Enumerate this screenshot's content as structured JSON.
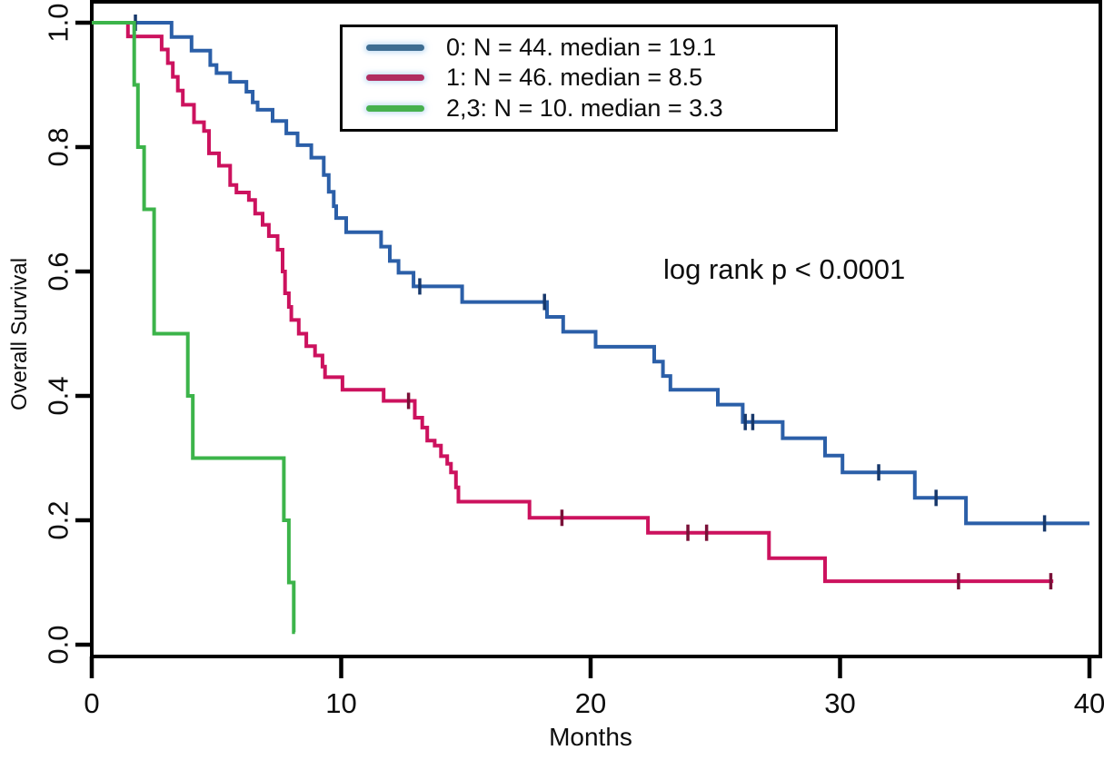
{
  "figure": {
    "background": "#ffffff",
    "frame_color": "#000000",
    "text_color": "#0d0d0d"
  },
  "chart_data": {
    "type": "line",
    "subtype": "kaplan_meier_step_survival",
    "title": "",
    "xlabel": "Months",
    "ylabel": "Overall Survival",
    "annotation": "log rank p < 0.0001",
    "xlim": [
      0,
      40
    ],
    "ylim": [
      0.0,
      1.0
    ],
    "xticks": [
      0,
      10,
      20,
      30,
      40
    ],
    "ytick_labels": [
      "0.0",
      "0.2",
      "0.4",
      "0.6",
      "0.8",
      "1.0"
    ],
    "grid": false,
    "legend_position": "top-inside",
    "series": [
      {
        "name": "group-0",
        "label": "0: N = 44. median = 19.1",
        "n": 44,
        "median_months": 19.1,
        "color": "#2b5fa8",
        "swatch_color": "#3e6d92",
        "censor_color": "#17386b",
        "end_time": 40.0,
        "steps": [
          [
            0,
            1.0
          ],
          [
            3.2,
            0.977
          ],
          [
            4.0,
            0.955
          ],
          [
            4.75,
            0.932
          ],
          [
            5.0,
            0.919
          ],
          [
            5.55,
            0.905
          ],
          [
            6.2,
            0.889
          ],
          [
            6.45,
            0.872
          ],
          [
            6.65,
            0.86
          ],
          [
            7.25,
            0.842
          ],
          [
            7.8,
            0.822
          ],
          [
            8.25,
            0.803
          ],
          [
            8.8,
            0.783
          ],
          [
            9.3,
            0.755
          ],
          [
            9.5,
            0.728
          ],
          [
            9.7,
            0.705
          ],
          [
            9.8,
            0.686
          ],
          [
            10.2,
            0.663
          ],
          [
            11.6,
            0.64
          ],
          [
            11.95,
            0.617
          ],
          [
            12.3,
            0.598
          ],
          [
            12.9,
            0.576
          ],
          [
            14.85,
            0.551
          ],
          [
            18.25,
            0.527
          ],
          [
            18.9,
            0.503
          ],
          [
            20.2,
            0.479
          ],
          [
            22.55,
            0.455
          ],
          [
            22.9,
            0.432
          ],
          [
            23.2,
            0.41
          ],
          [
            25.1,
            0.386
          ],
          [
            26.1,
            0.358
          ],
          [
            27.7,
            0.332
          ],
          [
            29.4,
            0.304
          ],
          [
            30.1,
            0.277
          ],
          [
            33.0,
            0.236
          ],
          [
            35.05,
            0.195
          ]
        ],
        "censor_ticks": [
          [
            1.75,
            1.0
          ],
          [
            13.15,
            0.576
          ],
          [
            18.15,
            0.551
          ],
          [
            26.2,
            0.358
          ],
          [
            26.5,
            0.358
          ],
          [
            31.55,
            0.277
          ],
          [
            33.85,
            0.236
          ],
          [
            38.2,
            0.195
          ]
        ]
      },
      {
        "name": "group-1",
        "label": "1: N = 46. median = 8.5",
        "n": 46,
        "median_months": 8.5,
        "color": "#cc125e",
        "swatch_color": "#b12d61",
        "censor_color": "#7a1038",
        "end_time": 38.55,
        "steps": [
          [
            0,
            1.0
          ],
          [
            1.45,
            0.978
          ],
          [
            2.8,
            0.957
          ],
          [
            3.05,
            0.935
          ],
          [
            3.25,
            0.913
          ],
          [
            3.45,
            0.891
          ],
          [
            3.65,
            0.868
          ],
          [
            4.1,
            0.84
          ],
          [
            4.5,
            0.826
          ],
          [
            4.7,
            0.79
          ],
          [
            5.1,
            0.77
          ],
          [
            5.55,
            0.739
          ],
          [
            5.8,
            0.727
          ],
          [
            6.3,
            0.715
          ],
          [
            6.55,
            0.693
          ],
          [
            6.85,
            0.675
          ],
          [
            7.1,
            0.657
          ],
          [
            7.45,
            0.635
          ],
          [
            7.65,
            0.6
          ],
          [
            7.75,
            0.565
          ],
          [
            7.9,
            0.543
          ],
          [
            8.0,
            0.522
          ],
          [
            8.3,
            0.5
          ],
          [
            8.6,
            0.48
          ],
          [
            8.95,
            0.465
          ],
          [
            9.25,
            0.447
          ],
          [
            9.35,
            0.43
          ],
          [
            10.05,
            0.41
          ],
          [
            11.7,
            0.392
          ],
          [
            12.95,
            0.365
          ],
          [
            13.25,
            0.349
          ],
          [
            13.45,
            0.328
          ],
          [
            13.75,
            0.32
          ],
          [
            14.0,
            0.303
          ],
          [
            14.25,
            0.291
          ],
          [
            14.4,
            0.277
          ],
          [
            14.6,
            0.253
          ],
          [
            14.7,
            0.23
          ],
          [
            17.55,
            0.204
          ],
          [
            22.3,
            0.18
          ],
          [
            27.15,
            0.139
          ],
          [
            29.4,
            0.102
          ]
        ],
        "censor_ticks": [
          [
            12.7,
            0.392
          ],
          [
            18.85,
            0.204
          ],
          [
            23.9,
            0.18
          ],
          [
            24.65,
            0.18
          ],
          [
            34.75,
            0.102
          ],
          [
            38.45,
            0.102
          ]
        ]
      },
      {
        "name": "group-2-3",
        "label": "2,3: N = 10. median = 3.3",
        "n": 10,
        "median_months": 3.3,
        "color": "#3cb44a",
        "swatch_color": "#47b14e",
        "censor_color": "#2e8b3a",
        "end_time": 8.15,
        "steps": [
          [
            0,
            1.0
          ],
          [
            1.7,
            0.9
          ],
          [
            1.85,
            0.8
          ],
          [
            2.1,
            0.7
          ],
          [
            2.5,
            0.5
          ],
          [
            3.85,
            0.4
          ],
          [
            4.05,
            0.3
          ],
          [
            7.7,
            0.2
          ],
          [
            7.9,
            0.1
          ],
          [
            8.1,
            0.02
          ]
        ],
        "censor_ticks": []
      }
    ]
  }
}
